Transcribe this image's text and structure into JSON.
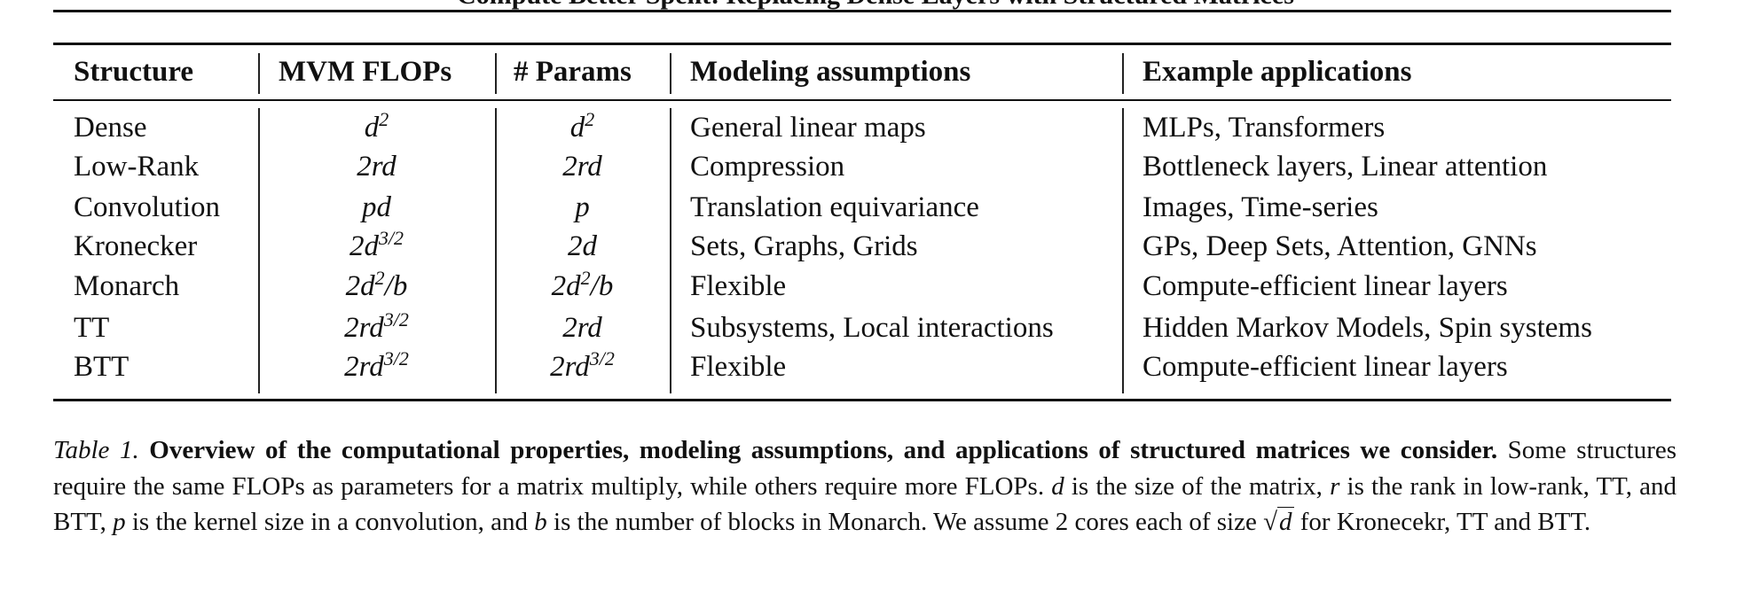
{
  "running_title": "Compute Better Spent: Replacing Dense Layers with Structured Matrices",
  "table": {
    "headers": [
      "Structure",
      "MVM FLOPs",
      "# Params",
      "Modeling assumptions",
      "Example applications"
    ],
    "rows": [
      {
        "structure": "Dense",
        "flops": "d",
        "flops_sup": "2",
        "flops_tail": "",
        "params": "d",
        "params_sup": "2",
        "params_tail": "",
        "assumptions": "General linear maps",
        "applications": "MLPs, Transformers"
      },
      {
        "structure": "Low-Rank",
        "flops": "2rd",
        "flops_sup": "",
        "flops_tail": "",
        "params": "2rd",
        "params_sup": "",
        "params_tail": "",
        "assumptions": "Compression",
        "applications": "Bottleneck layers, Linear attention"
      },
      {
        "structure": "Convolution",
        "flops": "pd",
        "flops_sup": "",
        "flops_tail": "",
        "params": "p",
        "params_sup": "",
        "params_tail": "",
        "assumptions": "Translation equivariance",
        "applications": "Images, Time-series"
      },
      {
        "structure": "Kronecker",
        "flops": "2d",
        "flops_sup": "3/2",
        "flops_tail": "",
        "params": "2d",
        "params_sup": "",
        "params_tail": "",
        "assumptions": "Sets, Graphs, Grids",
        "applications": "GPs, Deep Sets, Attention, GNNs"
      },
      {
        "structure": "Monarch",
        "flops": "2d",
        "flops_sup": "2",
        "flops_tail": "/b",
        "params": "2d",
        "params_sup": "2",
        "params_tail": "/b",
        "assumptions": "Flexible",
        "applications": "Compute-efficient linear layers"
      },
      {
        "structure": "TT",
        "flops": "2rd",
        "flops_sup": "3/2",
        "flops_tail": "",
        "params": "2rd",
        "params_sup": "",
        "params_tail": "",
        "assumptions": "Subsystems, Local interactions",
        "applications": "Hidden Markov Models, Spin systems"
      },
      {
        "structure": "BTT",
        "flops": "2rd",
        "flops_sup": "3/2",
        "flops_tail": "",
        "params": "2rd",
        "params_sup": "3/2",
        "params_tail": "",
        "assumptions": "Flexible",
        "applications": "Compute-efficient linear layers"
      }
    ]
  },
  "caption": {
    "label": "Table 1.",
    "bold": "Overview of the computational properties, modeling assumptions, and applications of structured matrices we consider.",
    "p1": "Some structures require the same FLOPs as parameters for a matrix multiply, while others require more FLOPs.",
    "v_d": "d",
    "p2": "is the size of the matrix,",
    "v_r": "r",
    "p3": "is the rank in low-rank, TT, and BTT,",
    "v_p": "p",
    "p4": "is the kernel size in a convolution, and",
    "v_b": "b",
    "p5": "is the number of blocks in Monarch. We assume 2 cores each of size",
    "sqrt_sign": "√",
    "sqrt_arg": "d",
    "p6": "for Kronecekr, TT and BTT."
  }
}
